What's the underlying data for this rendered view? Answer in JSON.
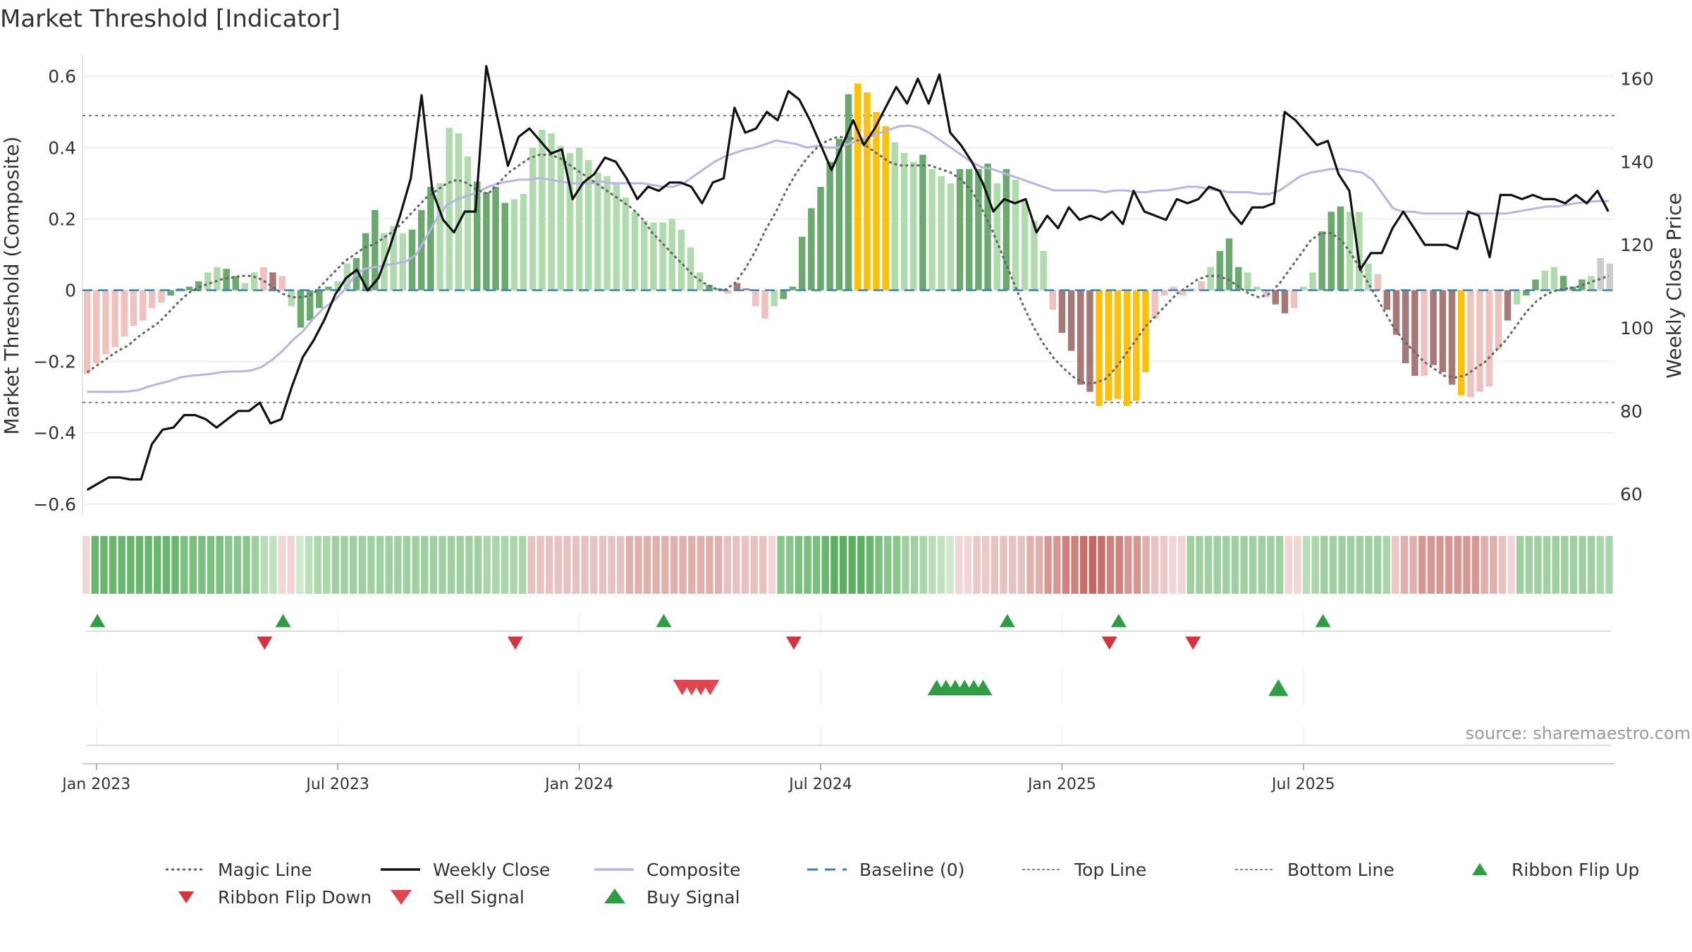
{
  "chart_data": {
    "type": "bar",
    "title": "Market Threshold [Indicator]",
    "ylabel_left": "Market Threshold (Composite)",
    "ylabel_right": "Weekly Close Price",
    "source": "source: sharemaestro.com",
    "ylim_left": [
      -0.63,
      0.64
    ],
    "ylim_right": [
      55,
      164
    ],
    "yticks_left": [
      {
        "v": 0.6,
        "label": "0.6"
      },
      {
        "v": 0.4,
        "label": "0.4"
      },
      {
        "v": 0.2,
        "label": "0.2"
      },
      {
        "v": 0,
        "label": "0"
      },
      {
        "v": -0.2,
        "label": "−0.2"
      },
      {
        "v": -0.4,
        "label": "−0.4"
      },
      {
        "v": -0.6,
        "label": "−0.6"
      }
    ],
    "yticks_right": [
      {
        "v": 160,
        "label": "160"
      },
      {
        "v": 140,
        "label": "140"
      },
      {
        "v": 120,
        "label": "120"
      },
      {
        "v": 100,
        "label": "100"
      },
      {
        "v": 80,
        "label": "80"
      },
      {
        "v": 60,
        "label": "60"
      }
    ],
    "xticks": [
      {
        "week": 1,
        "label": "Jan 2023"
      },
      {
        "week": 27,
        "label": "Jul 2023"
      },
      {
        "week": 53,
        "label": "Jan 2024"
      },
      {
        "week": 79,
        "label": "Jul 2024"
      },
      {
        "week": 105,
        "label": "Jan 2025"
      },
      {
        "week": 131,
        "label": "Jul 2025"
      }
    ],
    "top_line": 0.49,
    "bottom_line": -0.315,
    "composite": [
      -0.235,
      -0.205,
      -0.18,
      -0.16,
      -0.13,
      -0.1,
      -0.085,
      -0.05,
      -0.035,
      -0.015,
      0.005,
      0.01,
      0.025,
      0.05,
      0.065,
      0.06,
      0.04,
      0.02,
      0.05,
      0.065,
      0.05,
      0.04,
      -0.045,
      -0.105,
      -0.085,
      -0.05,
      0.01,
      0.025,
      0.075,
      0.09,
      0.16,
      0.225,
      0.16,
      0.18,
      0.16,
      0.17,
      0.225,
      0.29,
      0.3,
      0.455,
      0.44,
      0.375,
      0.305,
      0.275,
      0.29,
      0.245,
      0.255,
      0.27,
      0.4,
      0.45,
      0.44,
      0.405,
      0.385,
      0.4,
      0.365,
      0.33,
      0.32,
      0.3,
      0.26,
      0.22,
      0.195,
      0.19,
      0.19,
      0.2,
      0.17,
      0.12,
      0.05,
      0.015,
      0.005,
      -0.01,
      0.02,
      0.005,
      -0.045,
      -0.08,
      -0.045,
      -0.025,
      0.01,
      0.15,
      0.23,
      0.29,
      0.36,
      0.425,
      0.55,
      0.58,
      0.555,
      0.5,
      0.46,
      0.415,
      0.385,
      0.36,
      0.38,
      0.34,
      0.32,
      0.3,
      0.34,
      0.34,
      0.34,
      0.355,
      0.3,
      0.34,
      0.31,
      0.25,
      0.195,
      0.11,
      -0.055,
      -0.12,
      -0.17,
      -0.265,
      -0.285,
      -0.325,
      -0.31,
      -0.305,
      -0.325,
      -0.31,
      -0.23,
      -0.08,
      -0.015,
      0.01,
      -0.015,
      0.005,
      0.025,
      0.065,
      0.11,
      0.145,
      0.065,
      0.05,
      0.01,
      -0.02,
      -0.04,
      -0.065,
      -0.05,
      0.01,
      0.05,
      0.165,
      0.22,
      0.235,
      0.22,
      0.22,
      0.075,
      0.045,
      -0.055,
      -0.125,
      -0.205,
      -0.24,
      -0.24,
      -0.21,
      -0.23,
      -0.265,
      -0.295,
      -0.3,
      -0.285,
      -0.27,
      -0.165,
      -0.085,
      -0.04,
      -0.015,
      0.03,
      0.055,
      0.065,
      0.04,
      0.01,
      0.03,
      0.04,
      0.09,
      0.075
    ],
    "bar_colors": [
      "#f0c1bd",
      "#f0c1bd",
      "#f0c1bd",
      "#f0c1bd",
      "#f0c1bd",
      "#f0c1bd",
      "#f0c1bd",
      "#f0c1bd",
      "#f0c1bd",
      "#6aaa6e",
      "#6aaa6e",
      "#6aaa6e",
      "#6aaa6e",
      "#b0dbac",
      "#b0dbac",
      "#6aaa6e",
      "#6aaa6e",
      "#b0dbac",
      "#b0dbac",
      "#f0c1bd",
      "#a67876",
      "#f0c1bd",
      "#b0dbac",
      "#6aaa6e",
      "#6aaa6e",
      "#6aaa6e",
      "#6aaa6e",
      "#b0dbac",
      "#b0dbac",
      "#6aaa6e",
      "#6aaa6e",
      "#6aaa6e",
      "#b0dbac",
      "#b0dbac",
      "#b0dbac",
      "#6aaa6e",
      "#6aaa6e",
      "#6aaa6e",
      "#b0dbac",
      "#b0dbac",
      "#b0dbac",
      "#b0dbac",
      "#6aaa6e",
      "#6aaa6e",
      "#6aaa6e",
      "#6aaa6e",
      "#b0dbac",
      "#b0dbac",
      "#b0dbac",
      "#b0dbac",
      "#b0dbac",
      "#b0dbac",
      "#b0dbac",
      "#b0dbac",
      "#b0dbac",
      "#b0dbac",
      "#b0dbac",
      "#b0dbac",
      "#b0dbac",
      "#b0dbac",
      "#b0dbac",
      "#b0dbac",
      "#b0dbac",
      "#b0dbac",
      "#b0dbac",
      "#b0dbac",
      "#b0dbac",
      "#6aaa6e",
      "#6aaa6e",
      "#f0c1bd",
      "#a67876",
      "#a67876",
      "#f0c1bd",
      "#f0c1bd",
      "#b0dbac",
      "#6aaa6e",
      "#6aaa6e",
      "#6aaa6e",
      "#6aaa6e",
      "#6aaa6e",
      "#6aaa6e",
      "#6aaa6e",
      "#6aaa6e",
      "#ffc107",
      "#ffc107",
      "#ffc107",
      "#ffc107",
      "#b0dbac",
      "#b0dbac",
      "#b0dbac",
      "#6aaa6e",
      "#b0dbac",
      "#b0dbac",
      "#b0dbac",
      "#6aaa6e",
      "#6aaa6e",
      "#6aaa6e",
      "#6aaa6e",
      "#b0dbac",
      "#6aaa6e",
      "#b0dbac",
      "#b0dbac",
      "#b0dbac",
      "#b0dbac",
      "#f0c1bd",
      "#a67876",
      "#a67876",
      "#a67876",
      "#a67876",
      "#ffc107",
      "#ffc107",
      "#ffc107",
      "#ffc107",
      "#ffc107",
      "#ffc107",
      "#f0c1bd",
      "#f0c1bd",
      "#f0c1bd",
      "#f0c1bd",
      "#f0c1bd",
      "#f0c1bd",
      "#b0dbac",
      "#6aaa6e",
      "#6aaa6e",
      "#6aaa6e",
      "#b0dbac",
      "#b0dbac",
      "#f0c1bd",
      "#a67876",
      "#a67876",
      "#f0c1bd",
      "#b0dbac",
      "#b0dbac",
      "#6aaa6e",
      "#6aaa6e",
      "#6aaa6e",
      "#b0dbac",
      "#b0dbac",
      "#b0dbac",
      "#f0c1bd",
      "#a67876",
      "#a67876",
      "#a67876",
      "#a67876",
      "#f0c1bd",
      "#a67876",
      "#a67876",
      "#a67876",
      "#ffc107",
      "#f0c1bd",
      "#f0c1bd",
      "#f0c1bd",
      "#f0c1bd",
      "#a67876",
      "#b0dbac",
      "#6aaa6e",
      "#6aaa6e",
      "#b0dbac",
      "#b0dbac",
      "#6aaa6e",
      "#6aaa6e",
      "#6aaa6e",
      "#b0dbac"
    ],
    "magic_line": [
      -0.23,
      -0.21,
      -0.19,
      -0.17,
      -0.155,
      -0.13,
      -0.11,
      -0.09,
      -0.06,
      -0.03,
      -0.005,
      0.01,
      0.02,
      0.03,
      0.035,
      0.04,
      0.04,
      0.03,
      0.01,
      -0.01,
      -0.02,
      -0.02,
      -0.01,
      0.02,
      0.05,
      0.08,
      0.1,
      0.12,
      0.13,
      0.15,
      0.17,
      0.2,
      0.23,
      0.26,
      0.28,
      0.3,
      0.31,
      0.3,
      0.28,
      0.27,
      0.3,
      0.33,
      0.35,
      0.37,
      0.38,
      0.38,
      0.37,
      0.35,
      0.33,
      0.31,
      0.29,
      0.27,
      0.25,
      0.23,
      0.2,
      0.16,
      0.13,
      0.1,
      0.07,
      0.04,
      0.02,
      0.005,
      0.0,
      0.02,
      0.06,
      0.11,
      0.17,
      0.22,
      0.28,
      0.33,
      0.37,
      0.4,
      0.42,
      0.43,
      0.43,
      0.42,
      0.4,
      0.38,
      0.36,
      0.35,
      0.35,
      0.35,
      0.35,
      0.34,
      0.33,
      0.31,
      0.28,
      0.23,
      0.17,
      0.1,
      0.03,
      -0.04,
      -0.1,
      -0.15,
      -0.19,
      -0.22,
      -0.245,
      -0.26,
      -0.26,
      -0.25,
      -0.22,
      -0.18,
      -0.14,
      -0.1,
      -0.07,
      -0.04,
      -0.01,
      0.01,
      0.03,
      0.04,
      0.04,
      0.03,
      0.01,
      -0.01,
      -0.02,
      -0.01,
      0.02,
      0.06,
      0.1,
      0.14,
      0.16,
      0.16,
      0.14,
      0.1,
      0.05,
      0.0,
      -0.05,
      -0.1,
      -0.14,
      -0.17,
      -0.2,
      -0.22,
      -0.24,
      -0.245,
      -0.24,
      -0.22,
      -0.2,
      -0.17,
      -0.14,
      -0.1,
      -0.06,
      -0.03,
      -0.01,
      0.0,
      0.005,
      0.01,
      0.02,
      0.03,
      0.04
    ],
    "magic_line_x": [
      0,
      1,
      2,
      3,
      4,
      5,
      6,
      7,
      8,
      9,
      10,
      11,
      12,
      13,
      14,
      15,
      16,
      17,
      18,
      19,
      20,
      21,
      22,
      23,
      24,
      25,
      26,
      27,
      28,
      29,
      30,
      31,
      32,
      33,
      34,
      35,
      36,
      37,
      38,
      39,
      40,
      41,
      42,
      43,
      44,
      45,
      46,
      47,
      48,
      49,
      50,
      51,
      52,
      53,
      54,
      55,
      56,
      57,
      58,
      59,
      60,
      61,
      62,
      63,
      64,
      65,
      66,
      67,
      68,
      69,
      70,
      71,
      72,
      73,
      74,
      75,
      76,
      77,
      78,
      79,
      80,
      81,
      82,
      83,
      84,
      85,
      86,
      87,
      88,
      89,
      90,
      91,
      92,
      93,
      94,
      95,
      96,
      97,
      98,
      99,
      100,
      101,
      102,
      103,
      104,
      105,
      106,
      107,
      108,
      109,
      110,
      111,
      112,
      113,
      114,
      115,
      116,
      117,
      118,
      119,
      120,
      121,
      122,
      123,
      124,
      125,
      126,
      127,
      128,
      129,
      130,
      131,
      132,
      133,
      134,
      135,
      136,
      137,
      138,
      139,
      140,
      141,
      142,
      143,
      144,
      145,
      146,
      147,
      148,
      149,
      150,
      151,
      152
    ],
    "weekly_close": [
      61,
      62.5,
      64,
      64,
      63.5,
      63.5,
      72,
      75.5,
      76,
      79,
      79,
      78,
      76,
      78,
      80,
      80,
      82,
      77,
      78,
      86,
      93,
      97,
      102,
      108,
      112,
      114,
      109,
      112,
      119,
      127,
      136,
      156,
      133,
      126,
      123,
      128,
      128,
      163,
      151,
      139,
      146,
      148,
      145,
      142,
      143,
      131,
      135,
      137,
      141,
      140,
      136,
      131,
      134,
      133,
      135,
      135,
      134,
      130,
      135,
      136,
      153,
      147,
      148,
      152,
      150,
      157,
      155,
      150,
      144,
      138,
      144,
      150,
      144,
      148,
      153,
      158,
      154,
      160,
      154,
      161,
      147,
      144,
      140,
      135,
      128,
      131,
      130,
      131,
      123,
      127,
      124,
      129,
      126,
      127,
      126,
      128,
      125,
      133,
      128,
      127,
      126,
      131,
      130,
      131,
      134,
      133,
      128,
      125,
      129,
      129,
      130,
      152,
      150,
      147,
      144,
      145,
      137,
      133,
      114,
      118,
      118,
      124,
      128,
      124,
      120,
      120,
      120,
      119,
      128,
      127,
      117,
      132,
      132,
      131,
      132,
      131,
      131,
      130,
      132,
      130,
      133,
      128
    ],
    "composite_line": [
      -0.285,
      -0.285,
      -0.285,
      -0.285,
      -0.284,
      -0.28,
      -0.27,
      -0.262,
      -0.255,
      -0.245,
      -0.24,
      -0.238,
      -0.235,
      -0.23,
      -0.228,
      -0.228,
      -0.225,
      -0.215,
      -0.195,
      -0.17,
      -0.14,
      -0.115,
      -0.08,
      -0.05,
      -0.03,
      0.0,
      0.04,
      0.06,
      0.065,
      0.07,
      0.075,
      0.08,
      0.1,
      0.15,
      0.2,
      0.24,
      0.255,
      0.265,
      0.275,
      0.29,
      0.3,
      0.305,
      0.31,
      0.31,
      0.315,
      0.31,
      0.305,
      0.3,
      0.3,
      0.3,
      0.305,
      0.3,
      0.3,
      0.3,
      0.3,
      0.295,
      0.29,
      0.29,
      0.3,
      0.32,
      0.34,
      0.36,
      0.375,
      0.385,
      0.395,
      0.4,
      0.41,
      0.42,
      0.415,
      0.41,
      0.4,
      0.405,
      0.4,
      0.4,
      0.41,
      0.42,
      0.43,
      0.44,
      0.45,
      0.46,
      0.462,
      0.455,
      0.44,
      0.42,
      0.4,
      0.38,
      0.36,
      0.345,
      0.34,
      0.33,
      0.32,
      0.31,
      0.3,
      0.29,
      0.28,
      0.28,
      0.28,
      0.28,
      0.28,
      0.275,
      0.28,
      0.28,
      0.275,
      0.275,
      0.28,
      0.28,
      0.285,
      0.29,
      0.29,
      0.285,
      0.28,
      0.275,
      0.275,
      0.275,
      0.27,
      0.27,
      0.28,
      0.3,
      0.32,
      0.33,
      0.335,
      0.34,
      0.34,
      0.335,
      0.33,
      0.31,
      0.27,
      0.23,
      0.22,
      0.22,
      0.215,
      0.215,
      0.215,
      0.215,
      0.215,
      0.215,
      0.215,
      0.215,
      0.215,
      0.22,
      0.225,
      0.23,
      0.235,
      0.235,
      0.24,
      0.245,
      0.248,
      0.25,
      0.25
    ],
    "ribbon_colors": [
      "#f2d5d4",
      "#69b76e",
      "#69b76e",
      "#69b76e",
      "#69b76e",
      "#69b76e",
      "#69b76e",
      "#69b76e",
      "#69b76e",
      "#69b76e",
      "#69b76e",
      "#7cc07f",
      "#7cc07f",
      "#7cc07f",
      "#7cc07f",
      "#7cc07f",
      "#88c68b",
      "#88c68b",
      "#88c68b",
      "#9fd1a0",
      "#b9dfb9",
      "#bfe2bf",
      "#f2d5d4",
      "#f2d5d4",
      "#cfe8ce",
      "#b9dfb9",
      "#a9d7a9",
      "#a9d7a9",
      "#9fd1a0",
      "#9fd1a0",
      "#9fd1a0",
      "#9fd1a0",
      "#9fd1a0",
      "#9fd1a0",
      "#9fd1a0",
      "#9fd1a0",
      "#9fd1a0",
      "#9fd1a0",
      "#9fd1a0",
      "#9fd1a0",
      "#9fd1a0",
      "#9fd1a0",
      "#9fd1a0",
      "#9fd1a0",
      "#9fd1a0",
      "#a9d7a9",
      "#a9d7a9",
      "#a9d7a9",
      "#a9d7a9",
      "#a9d7a9",
      "#e6c3c0",
      "#e6c3c0",
      "#e6c3c0",
      "#e6c3c0",
      "#e6c3c0",
      "#e6c3c0",
      "#e6c3c0",
      "#e6c3c0",
      "#e6c3c0",
      "#e6c3c0",
      "#e6c3c0",
      "#dfb0ac",
      "#dfb0ac",
      "#dfb0ac",
      "#dfb0ac",
      "#dfb0ac",
      "#dfb0ac",
      "#dfb0ac",
      "#dfb0ac",
      "#dfb0ac",
      "#dfb0ac",
      "#dfb0ac",
      "#e6c3c0",
      "#e6c3c0",
      "#e6c3c0",
      "#e6c3c0",
      "#e6c3c0",
      "#f2d5d4",
      "#88c68b",
      "#88c68b",
      "#7cc07f",
      "#7cc07f",
      "#7cc07f",
      "#69b76e",
      "#5bb060",
      "#5bb060",
      "#5bb060",
      "#5bb060",
      "#69b76e",
      "#7cc07f",
      "#88c68b",
      "#88c68b",
      "#9fd1a0",
      "#9fd1a0",
      "#a9d7a9",
      "#b9dfb9",
      "#bfe2bf",
      "#cfe8ce",
      "#f2d5d4",
      "#f2d5d4",
      "#ecc9c6",
      "#ecc9c6",
      "#e6c3c0",
      "#e6c3c0",
      "#e6c3c0",
      "#e6c3c0",
      "#dfb0ac",
      "#dfb0ac",
      "#d69792",
      "#d69792",
      "#cf827d",
      "#cf827d",
      "#c96e69",
      "#c56660",
      "#c96e69",
      "#cf827d",
      "#cf827d",
      "#d69792",
      "#d69792",
      "#dfb0ac",
      "#e6c3c0",
      "#ecc9c6",
      "#f2d5d4",
      "#f2d5d4",
      "#9fd1a0",
      "#9fd1a0",
      "#9fd1a0",
      "#9fd1a0",
      "#9fd1a0",
      "#9fd1a0",
      "#9fd1a0",
      "#9fd1a0",
      "#9fd1a0",
      "#9fd1a0",
      "#9fd1a0",
      "#f2d5d4",
      "#f2d5d4",
      "#b9dfb9",
      "#a9d7a9",
      "#9fd1a0",
      "#9fd1a0",
      "#9fd1a0",
      "#9fd1a0",
      "#9fd1a0",
      "#9fd1a0",
      "#9fd1a0",
      "#a9d7a9",
      "#ecc9c6",
      "#dfb0ac",
      "#dfb0ac",
      "#d69792",
      "#d69792",
      "#d69792",
      "#d69792",
      "#d69792",
      "#d69792",
      "#d69792",
      "#dfb0ac",
      "#dfb0ac",
      "#e6c3c0",
      "#f2d5d4",
      "#9fd1a0",
      "#9fd1a0",
      "#9fd1a0",
      "#9fd1a0",
      "#9fd1a0",
      "#9fd1a0",
      "#9fd1a0",
      "#9fd1a0",
      "#9fd1a0",
      "#a9d7a9",
      "#a9d7a9"
    ],
    "ribbon_flip_up": [
      1,
      21,
      62,
      99,
      111,
      133
    ],
    "ribbon_flip_down": [
      19,
      46,
      76,
      110,
      119
    ],
    "sell_signals": [
      64,
      65,
      66,
      67
    ],
    "buy_signals": [
      91,
      92,
      93,
      94,
      95,
      96
    ],
    "buy_signals_2": [
      128
    ],
    "colors": {
      "bar_strong_green": "#6aaa6e",
      "bar_light_green": "#b0dbac",
      "bar_light_red": "#f0c1bd",
      "bar_strong_red": "#a67876",
      "bar_extreme": "#ffc107",
      "magic_line": "#666666",
      "weekly_close": "#111111",
      "composite": "#b9b3e6",
      "baseline": "#3b7fb5",
      "threshold_lines": "#777777",
      "buy": "#2e9e45",
      "sell": "#d6333d"
    },
    "legend": [
      {
        "label": "Magic Line",
        "kind": "dot-line",
        "color": "#666666"
      },
      {
        "label": "Weekly Close",
        "kind": "solid-line",
        "color": "#111111"
      },
      {
        "label": "Composite",
        "kind": "solid-line",
        "color": "#b9b3e6"
      },
      {
        "label": "Baseline (0)",
        "kind": "dash-line",
        "color": "#3b7fb5"
      },
      {
        "label": "Top Line",
        "kind": "dot-line-light",
        "color": "#888888"
      },
      {
        "label": "Bottom Line",
        "kind": "dot-line-light",
        "color": "#888888"
      },
      {
        "label": "Ribbon Flip Up",
        "kind": "tri-up",
        "color": "#2e9e45"
      },
      {
        "label": "Ribbon Flip Down",
        "kind": "tri-down",
        "color": "#d6333d"
      },
      {
        "label": "Sell Signal",
        "kind": "tri-down-big",
        "color": "#e04550"
      },
      {
        "label": "Buy Signal",
        "kind": "tri-up-big",
        "color": "#2e9e45"
      }
    ]
  }
}
